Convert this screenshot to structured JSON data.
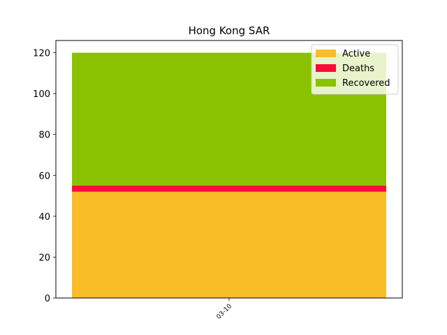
{
  "chart_data": {
    "type": "bar",
    "stacked": true,
    "title": "Hong Kong SAR",
    "categories": [
      "03-10"
    ],
    "series": [
      {
        "name": "Active",
        "values": [
          52
        ],
        "color": "#f9bd28"
      },
      {
        "name": "Deaths",
        "values": [
          3
        ],
        "color": "#fc0a3b"
      },
      {
        "name": "Recovered",
        "values": [
          65
        ],
        "color": "#8ac100"
      }
    ],
    "ylim": [
      0,
      126
    ],
    "yticks": [
      0,
      20,
      40,
      60,
      80,
      100,
      120
    ],
    "xlabel": "",
    "ylabel": "",
    "grid": false,
    "legend_position": "top-right"
  }
}
